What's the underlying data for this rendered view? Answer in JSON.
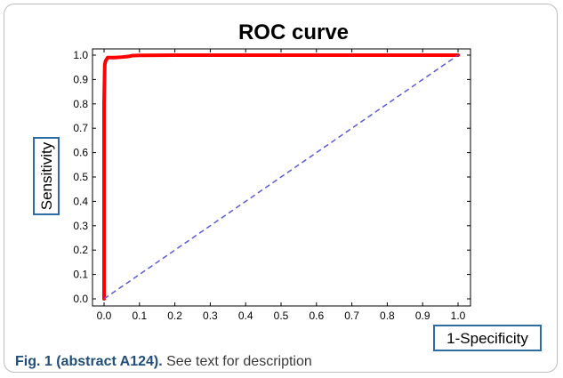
{
  "caption": {
    "label": "Fig. 1 (abstract A124).",
    "text": " See text for description"
  },
  "chart_data": {
    "type": "line",
    "title": "ROC curve",
    "xlabel": "1-Specificity",
    "ylabel": "Sensitivity",
    "xlim": [
      0.0,
      1.0
    ],
    "ylim": [
      0.0,
      1.0
    ],
    "xticks": [
      "0.0",
      "0.1",
      "0.2",
      "0.3",
      "0.4",
      "0.5",
      "0.6",
      "0.7",
      "0.8",
      "0.9",
      "1.0"
    ],
    "yticks": [
      "0.0",
      "0.1",
      "0.2",
      "0.3",
      "0.4",
      "0.5",
      "0.6",
      "0.7",
      "0.8",
      "0.9",
      "1.0"
    ],
    "grid": false,
    "series": [
      {
        "style": "solid",
        "color": "#ff0000",
        "x": [
          0.0,
          0.0,
          0.002,
          0.004,
          0.006,
          0.008,
          0.01,
          0.02,
          0.03,
          0.05,
          0.07,
          0.08,
          0.1,
          0.2,
          0.4,
          0.6,
          0.8,
          1.0
        ],
        "y": [
          0.0,
          0.8,
          0.96,
          0.975,
          0.98,
          0.985,
          0.99,
          0.99,
          0.99,
          0.992,
          0.995,
          0.998,
          0.999,
          1.0,
          1.0,
          1.0,
          1.0,
          1.0
        ]
      },
      {
        "style": "dashed",
        "color": "#5b5bdc",
        "x": [
          0.0,
          1.0
        ],
        "y": [
          0.0,
          1.0
        ]
      }
    ]
  }
}
